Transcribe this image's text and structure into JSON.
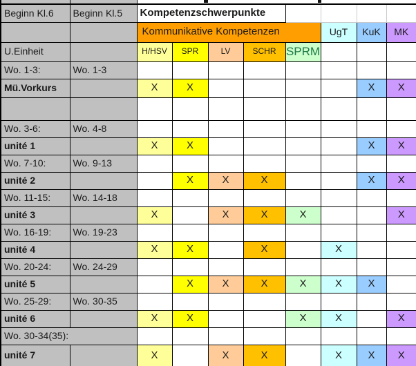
{
  "mark": "X",
  "colors": {
    "gray": "#c0c0c0",
    "orange": "#ff9e00",
    "border": "#000000",
    "text": "#1a1a1a",
    "sprm-text": "#1f7849"
  },
  "table_title_row": {
    "kl6": "Beginn Kl.6",
    "kl5": "Beginn Kl.5",
    "title": "Kompetenzschwerpunkte"
  },
  "competence_groups": {
    "kommunikative": "Kommunikative Kompetenzen",
    "ugt": "UgT",
    "kuk": "KuK",
    "mk": "MK"
  },
  "unit_header": {
    "label": "U.Einheit",
    "sub_columns": [
      "H/HSV",
      "SPR",
      "LV",
      "SCHR",
      "SPRM"
    ]
  },
  "columns": [
    {
      "key": "hhsv",
      "label": "H/HSV",
      "color": "#ffff99"
    },
    {
      "key": "spr",
      "label": "SPR",
      "color": "#ffff00"
    },
    {
      "key": "lv",
      "label": "LV",
      "color": "#ffcc99"
    },
    {
      "key": "schr",
      "label": "SCHR",
      "color": "#ffc000"
    },
    {
      "key": "sprm",
      "label": "SPRM",
      "color": "#ccffcc"
    },
    {
      "key": "ugt",
      "label": "UgT",
      "color": "#ccffff"
    },
    {
      "key": "kuk",
      "label": "KuK",
      "color": "#99ccff"
    },
    {
      "key": "mk",
      "label": "MK",
      "color": "#cc99ff"
    }
  ],
  "rows": [
    {
      "type": "weeks",
      "kl6": "Wo. 1-3:",
      "kl5": "Wo. 1-3"
    },
    {
      "type": "unit",
      "label": "Mü.Vorkurs",
      "marks": [
        1,
        1,
        0,
        0,
        0,
        0,
        1,
        1
      ]
    },
    {
      "type": "spacer"
    },
    {
      "type": "weeks",
      "kl6": "Wo. 3-6:",
      "kl5": "Wo. 4-8"
    },
    {
      "type": "unit",
      "label": "unité 1",
      "marks": [
        1,
        1,
        0,
        0,
        0,
        0,
        1,
        1
      ]
    },
    {
      "type": "weeks",
      "kl6": "Wo. 7-10:",
      "kl5": "Wo. 9-13"
    },
    {
      "type": "unit",
      "label": "unité 2",
      "marks": [
        0,
        1,
        1,
        1,
        0,
        0,
        1,
        1
      ]
    },
    {
      "type": "weeks",
      "kl6": "Wo. 11-15:",
      "kl5": "Wo. 14-18"
    },
    {
      "type": "unit",
      "label": "unité 3",
      "marks": [
        1,
        0,
        1,
        1,
        1,
        0,
        0,
        1
      ]
    },
    {
      "type": "weeks",
      "kl6": "Wo. 16-19:",
      "kl5": "Wo. 19-23"
    },
    {
      "type": "unit",
      "label": "unité 4",
      "marks": [
        1,
        1,
        0,
        1,
        0,
        1,
        0,
        0
      ]
    },
    {
      "type": "weeks",
      "kl6": "Wo. 20-24:",
      "kl5": "Wo. 24-29"
    },
    {
      "type": "unit",
      "label": "unité 5",
      "marks": [
        0,
        1,
        1,
        1,
        1,
        1,
        1,
        0
      ]
    },
    {
      "type": "weeks",
      "kl6": "Wo. 25-29:",
      "kl5": "Wo. 30-35"
    },
    {
      "type": "unit",
      "label": "unité 6",
      "marks": [
        1,
        1,
        0,
        0,
        1,
        1,
        0,
        1
      ]
    },
    {
      "type": "weeks_merged",
      "kl6": "Wo. 30-34(35):"
    },
    {
      "type": "unit",
      "label": "unité 7",
      "marks": [
        1,
        0,
        1,
        1,
        0,
        1,
        1,
        1
      ]
    }
  ]
}
